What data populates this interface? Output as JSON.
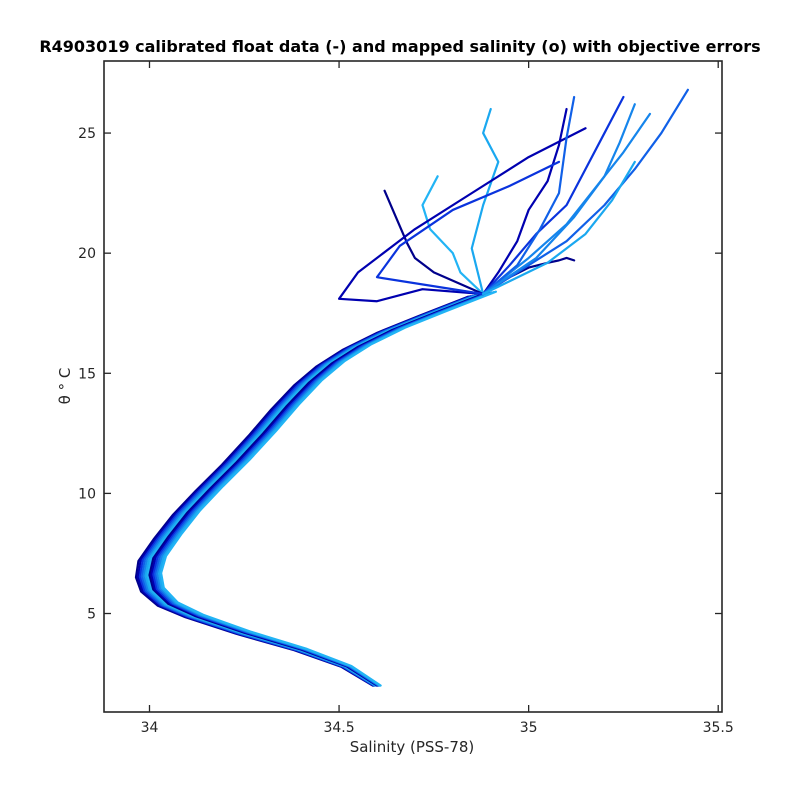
{
  "chart_data": {
    "type": "line",
    "title": "R4903019 calibrated float data (-) and mapped salinity (o) with objective errors",
    "xlabel": "Salinity (PSS-78)",
    "ylabel": "θ ° C",
    "xlim": [
      33.88,
      35.51
    ],
    "ylim": [
      0.9,
      28.0
    ],
    "xticks": [
      34,
      34.5,
      35,
      35.5
    ],
    "xtick_labels": [
      "34",
      "34.5",
      "35",
      "35.5"
    ],
    "yticks": [
      5,
      10,
      15,
      20,
      25
    ],
    "ytick_labels": [
      "5",
      "10",
      "15",
      "20",
      "25"
    ],
    "grid": false,
    "legend": "none",
    "colors": {
      "axes": "#262626",
      "background": "#ffffff",
      "profile_dark": "#00008b",
      "profile_mid": "#0a33dd",
      "profile_light": "#1aa8f0"
    },
    "deep_curve": {
      "x": [
        34.6,
        34.52,
        34.4,
        34.25,
        34.12,
        34.05,
        34.01,
        34.0,
        34.01,
        34.05,
        34.1,
        34.16,
        34.23,
        34.3,
        34.36,
        34.42,
        34.48,
        34.55,
        34.64,
        34.75,
        34.88
      ],
      "y": [
        2.0,
        2.8,
        3.5,
        4.2,
        4.9,
        5.4,
        6.0,
        6.6,
        7.3,
        8.2,
        9.2,
        10.2,
        11.3,
        12.5,
        13.6,
        14.6,
        15.4,
        16.1,
        16.8,
        17.5,
        18.3
      ]
    },
    "upper_branches": [
      {
        "x": [
          34.88,
          34.95,
          35.0,
          35.05,
          35.08,
          35.1,
          35.12
        ],
        "y": [
          18.3,
          19.0,
          19.4,
          19.6,
          19.7,
          19.8,
          19.7
        ]
      },
      {
        "x": [
          34.88,
          34.92,
          34.97,
          35.0,
          35.05,
          35.08,
          35.1
        ],
        "y": [
          18.3,
          19.2,
          20.5,
          21.8,
          23.0,
          24.5,
          26.0
        ]
      },
      {
        "x": [
          34.88,
          34.95,
          35.02,
          35.1,
          35.15,
          35.2,
          35.25
        ],
        "y": [
          18.3,
          19.5,
          20.8,
          22.0,
          23.5,
          25.0,
          26.5
        ]
      },
      {
        "x": [
          34.88,
          35.0,
          35.1,
          35.2,
          35.28,
          35.35,
          35.42
        ],
        "y": [
          18.3,
          19.5,
          20.5,
          22.0,
          23.5,
          25.0,
          26.8
        ]
      },
      {
        "x": [
          34.88,
          35.0,
          35.1,
          35.18,
          35.25,
          35.32
        ],
        "y": [
          18.3,
          19.8,
          21.2,
          22.8,
          24.2,
          25.8
        ]
      },
      {
        "x": [
          34.88,
          34.85,
          34.88,
          34.92,
          34.88,
          34.9
        ],
        "y": [
          18.3,
          20.2,
          22.0,
          23.8,
          25.0,
          26.0
        ]
      },
      {
        "x": [
          34.88,
          34.82,
          34.8,
          34.74,
          34.72,
          34.76
        ],
        "y": [
          18.3,
          19.2,
          20.0,
          21.0,
          22.0,
          23.2
        ]
      },
      {
        "x": [
          34.88,
          34.75,
          34.7,
          34.68,
          34.65,
          34.62
        ],
        "y": [
          18.3,
          19.2,
          19.8,
          20.4,
          21.5,
          22.6
        ]
      },
      {
        "x": [
          34.88,
          34.72,
          34.6,
          34.5,
          34.55,
          34.7,
          34.85,
          35.0,
          35.15
        ],
        "y": [
          18.3,
          18.5,
          18.0,
          18.1,
          19.2,
          21.0,
          22.5,
          24.0,
          25.2
        ]
      },
      {
        "x": [
          34.88,
          34.6,
          34.66,
          34.8,
          34.95,
          35.08
        ],
        "y": [
          18.3,
          19.0,
          20.3,
          21.8,
          22.8,
          23.8
        ]
      },
      {
        "x": [
          34.88,
          34.97,
          35.03,
          35.08,
          35.1,
          35.12
        ],
        "y": [
          18.3,
          19.5,
          21.0,
          22.5,
          24.8,
          26.5
        ]
      },
      {
        "x": [
          34.88,
          35.02,
          35.12,
          35.2,
          35.24,
          35.28
        ],
        "y": [
          18.3,
          19.8,
          21.5,
          23.2,
          24.6,
          26.2
        ]
      },
      {
        "x": [
          34.88,
          35.05,
          35.15,
          35.22,
          35.28
        ],
        "y": [
          18.3,
          19.6,
          20.8,
          22.2,
          23.8
        ]
      }
    ]
  }
}
